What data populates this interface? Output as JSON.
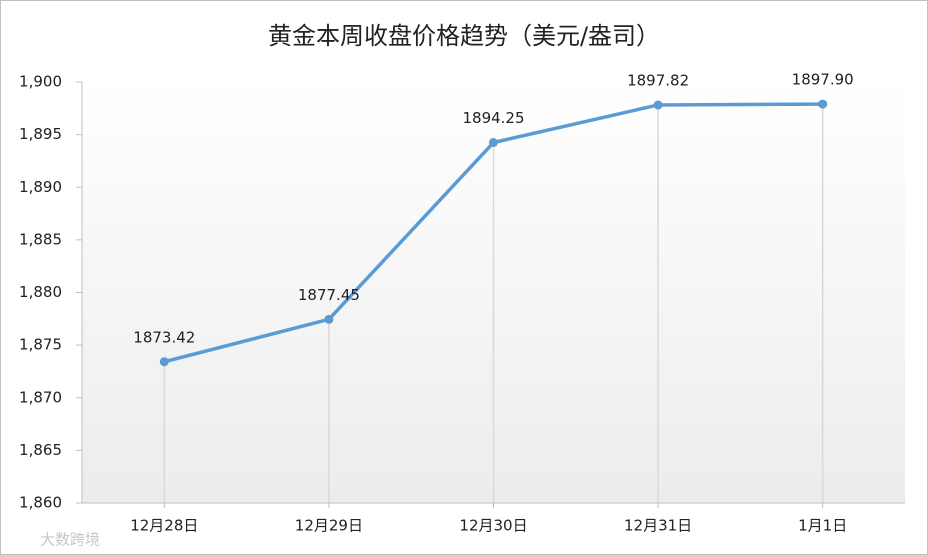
{
  "chart_data": {
    "type": "line",
    "title": "黄金本周收盘价格趋势（美元/盎司）",
    "categories": [
      "12月28日",
      "12月29日",
      "12月30日",
      "12月31日",
      "1月1日"
    ],
    "values": [
      1873.42,
      1877.45,
      1894.25,
      1897.82,
      1897.9
    ],
    "value_labels": [
      "1873.42",
      "1877.45",
      "1894.25",
      "1897.82",
      "1897.90"
    ],
    "color": "#5b9bd5",
    "ylim": [
      1860,
      1900
    ],
    "yticks": [
      {
        "value": 1860,
        "label": "1,860"
      },
      {
        "value": 1865,
        "label": "1,865"
      },
      {
        "value": 1870,
        "label": "1,870"
      },
      {
        "value": 1875,
        "label": "1,875"
      },
      {
        "value": 1880,
        "label": "1,880"
      },
      {
        "value": 1885,
        "label": "1,885"
      },
      {
        "value": 1890,
        "label": "1,890"
      },
      {
        "value": 1895,
        "label": "1,895"
      },
      {
        "value": 1900,
        "label": "1,900"
      }
    ],
    "drop_lines": true,
    "watermark": "大数跨境"
  }
}
